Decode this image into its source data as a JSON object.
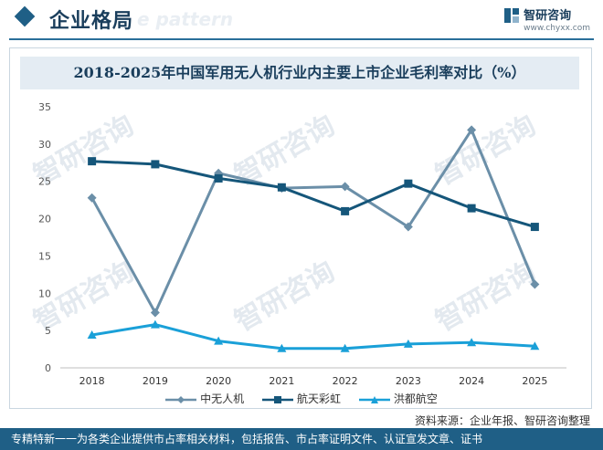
{
  "header": {
    "title": "企业格局",
    "ghost_text": "e pattern",
    "brand_name": "智研咨询",
    "brand_url": "www.chyxx.com"
  },
  "watermark_text": "智研咨询",
  "chart_data": {
    "type": "line",
    "title": "2018-2025年中国军用无人机行业内主要上市企业毛利率对比（%）",
    "xlabel": "",
    "ylabel": "",
    "categories": [
      "2018",
      "2019",
      "2020",
      "2021",
      "2022",
      "2023",
      "2024",
      "2025"
    ],
    "ylim": [
      0,
      35
    ],
    "yticks": [
      0,
      5,
      10,
      15,
      20,
      25,
      30,
      35
    ],
    "grid": false,
    "legend_position": "bottom",
    "series": [
      {
        "name": "中无人机",
        "color": "#6b8fa8",
        "marker": "diamond",
        "values": [
          22.8,
          7.4,
          26.1,
          24.1,
          24.3,
          18.9,
          31.9,
          11.2
        ]
      },
      {
        "name": "航天彩虹",
        "color": "#15567a",
        "marker": "square",
        "values": [
          27.7,
          27.3,
          25.4,
          24.2,
          21.0,
          24.7,
          21.4,
          18.9
        ]
      },
      {
        "name": "洪都航空",
        "color": "#1aa0d8",
        "marker": "triangle",
        "values": [
          4.4,
          5.8,
          3.6,
          2.6,
          2.6,
          3.2,
          3.4,
          2.9
        ]
      }
    ]
  },
  "source_text": "资料来源：企业年报、智研咨询整理",
  "footer_text": "专精特新一一为各类企业提供市占率相关材料，包括报告、市占率证明文件、认证宣发文章、证书"
}
